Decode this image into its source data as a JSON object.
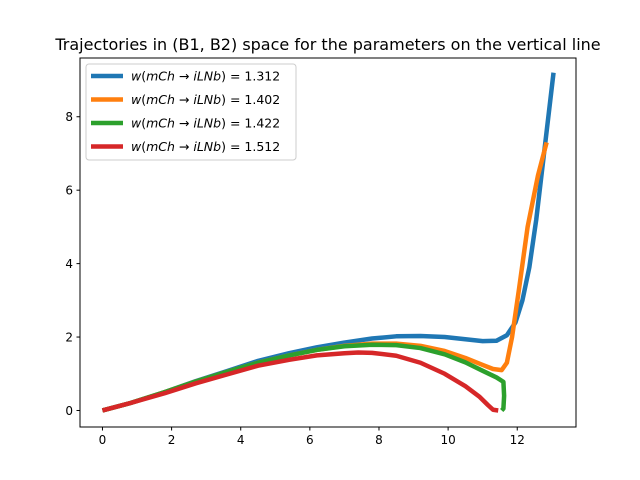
{
  "chart_data": {
    "type": "line",
    "title": "Trajectories in (B1, B2) space for the parameters on the vertical line",
    "xlabel": "",
    "ylabel": "",
    "xlim": [
      -0.65,
      13.7
    ],
    "ylim": [
      -0.45,
      9.6
    ],
    "xticks": [
      0,
      2,
      4,
      6,
      8,
      10,
      12
    ],
    "yticks": [
      0,
      2,
      4,
      6,
      8
    ],
    "grid": false,
    "legend_position": "top-left",
    "legend_prefix": "w(mCh → iLNb) = ",
    "series": [
      {
        "name": "w(mCh → iLNb) = 1.312",
        "value_label": "1.312",
        "color": "#1f77b4",
        "x": [
          0,
          0.8,
          1.8,
          2.7,
          3.6,
          4.5,
          5.4,
          6.2,
          7.0,
          7.8,
          8.5,
          9.2,
          9.9,
          10.5,
          11.0,
          11.4,
          11.7,
          11.95,
          12.15,
          12.35,
          12.55,
          12.75,
          12.9,
          13.05
        ],
        "y": [
          0,
          0.2,
          0.5,
          0.8,
          1.07,
          1.35,
          1.56,
          1.72,
          1.85,
          1.96,
          2.02,
          2.03,
          2.0,
          1.94,
          1.89,
          1.9,
          2.05,
          2.4,
          3.0,
          3.9,
          5.2,
          6.8,
          8.0,
          9.2
        ]
      },
      {
        "name": "w(mCh → iLNb) = 1.402",
        "value_label": "1.402",
        "color": "#ff7f0e",
        "x": [
          0,
          0.8,
          1.8,
          2.7,
          3.6,
          4.5,
          5.4,
          6.2,
          7.0,
          7.8,
          8.5,
          9.2,
          9.9,
          10.5,
          11.0,
          11.3,
          11.55,
          11.7,
          11.85,
          12.05,
          12.3,
          12.6,
          12.85
        ],
        "y": [
          0,
          0.2,
          0.5,
          0.79,
          1.05,
          1.3,
          1.5,
          1.65,
          1.76,
          1.82,
          1.82,
          1.76,
          1.62,
          1.43,
          1.24,
          1.13,
          1.1,
          1.3,
          2.0,
          3.3,
          5.0,
          6.4,
          7.3
        ]
      },
      {
        "name": "w(mCh → iLNb) = 1.422",
        "value_label": "1.422",
        "color": "#2ca02c",
        "x": [
          0,
          0.8,
          1.8,
          2.7,
          3.6,
          4.5,
          5.4,
          6.2,
          7.0,
          7.8,
          8.5,
          9.2,
          9.9,
          10.5,
          11.0,
          11.4,
          11.6,
          11.62,
          11.6,
          11.55
        ],
        "y": [
          0,
          0.2,
          0.5,
          0.79,
          1.05,
          1.3,
          1.5,
          1.65,
          1.75,
          1.79,
          1.78,
          1.7,
          1.53,
          1.31,
          1.08,
          0.9,
          0.78,
          0.4,
          0.05,
          0.0
        ]
      },
      {
        "name": "w(mCh → iLNb) = 1.512",
        "value_label": "1.512",
        "color": "#d62728",
        "x": [
          0,
          0.8,
          1.8,
          2.7,
          3.6,
          4.5,
          5.4,
          6.2,
          7.0,
          7.4,
          7.8,
          8.5,
          9.2,
          9.9,
          10.5,
          10.9,
          11.15,
          11.3,
          11.45
        ],
        "y": [
          0,
          0.2,
          0.47,
          0.74,
          0.98,
          1.22,
          1.38,
          1.5,
          1.56,
          1.58,
          1.57,
          1.49,
          1.3,
          1.0,
          0.66,
          0.38,
          0.15,
          0.02,
          0.0
        ]
      }
    ]
  }
}
